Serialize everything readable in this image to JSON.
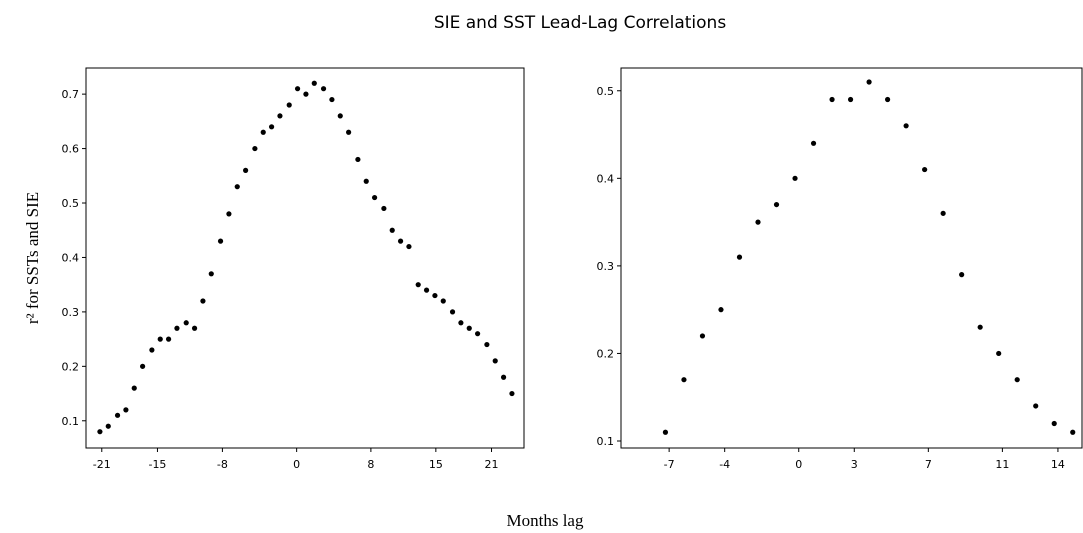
{
  "title": "SIE and SST Lead-Lag Correlations",
  "x_label": "Months lag",
  "y_label": "r² for SSTs and SIE",
  "chart_data": [
    {
      "type": "scatter",
      "color": "#000000",
      "xlim": [
        -22.7,
        24.5
      ],
      "ylim": [
        0.05,
        0.748
      ],
      "xticks": [
        -21,
        -15,
        -8,
        0,
        8,
        15,
        21
      ],
      "yticks": [
        0.1,
        0.2,
        0.3,
        0.4,
        0.5,
        0.6,
        0.7
      ],
      "x": [
        -21.2,
        -20.3,
        -19.3,
        -18.4,
        -17.5,
        -16.6,
        -15.6,
        -14.7,
        -13.8,
        -12.9,
        -11.9,
        -11.0,
        -10.1,
        -9.2,
        -8.2,
        -7.3,
        -6.4,
        -5.5,
        -4.5,
        -3.6,
        -2.7,
        -1.8,
        -0.8,
        0.1,
        1.0,
        1.9,
        2.9,
        3.8,
        4.7,
        5.6,
        6.6,
        7.5,
        8.4,
        9.4,
        10.3,
        11.2,
        12.1,
        13.1,
        14.0,
        14.9,
        15.8,
        16.8,
        17.7,
        18.6,
        19.5,
        20.5,
        21.4,
        22.3,
        23.2
      ],
      "values": [
        0.08,
        0.09,
        0.11,
        0.12,
        0.16,
        0.2,
        0.23,
        0.25,
        0.25,
        0.27,
        0.28,
        0.27,
        0.32,
        0.37,
        0.43,
        0.48,
        0.53,
        0.56,
        0.6,
        0.63,
        0.64,
        0.66,
        0.68,
        0.71,
        0.7,
        0.72,
        0.71,
        0.69,
        0.66,
        0.63,
        0.58,
        0.54,
        0.51,
        0.49,
        0.45,
        0.43,
        0.42,
        0.35,
        0.34,
        0.33,
        0.32,
        0.3,
        0.28,
        0.27,
        0.26,
        0.24,
        0.21,
        0.18,
        0.15
      ]
    },
    {
      "type": "scatter",
      "color": "#000000",
      "xlim": [
        -9.6,
        15.3
      ],
      "ylim": [
        0.092,
        0.526
      ],
      "xticks": [
        -7,
        -4,
        0,
        3,
        7,
        11,
        14
      ],
      "yticks": [
        0.1,
        0.2,
        0.3,
        0.4,
        0.5
      ],
      "x": [
        -7.2,
        -6.2,
        -5.2,
        -4.2,
        -3.2,
        -2.2,
        -1.2,
        -0.2,
        0.8,
        1.8,
        2.8,
        3.8,
        4.8,
        5.8,
        6.8,
        7.8,
        8.8,
        9.8,
        10.8,
        11.8,
        12.8,
        13.8,
        14.8
      ],
      "values": [
        0.11,
        0.17,
        0.22,
        0.25,
        0.31,
        0.35,
        0.37,
        0.4,
        0.44,
        0.49,
        0.49,
        0.51,
        0.49,
        0.46,
        0.41,
        0.36,
        0.29,
        0.23,
        0.2,
        0.17,
        0.14,
        0.12,
        0.11
      ]
    }
  ]
}
